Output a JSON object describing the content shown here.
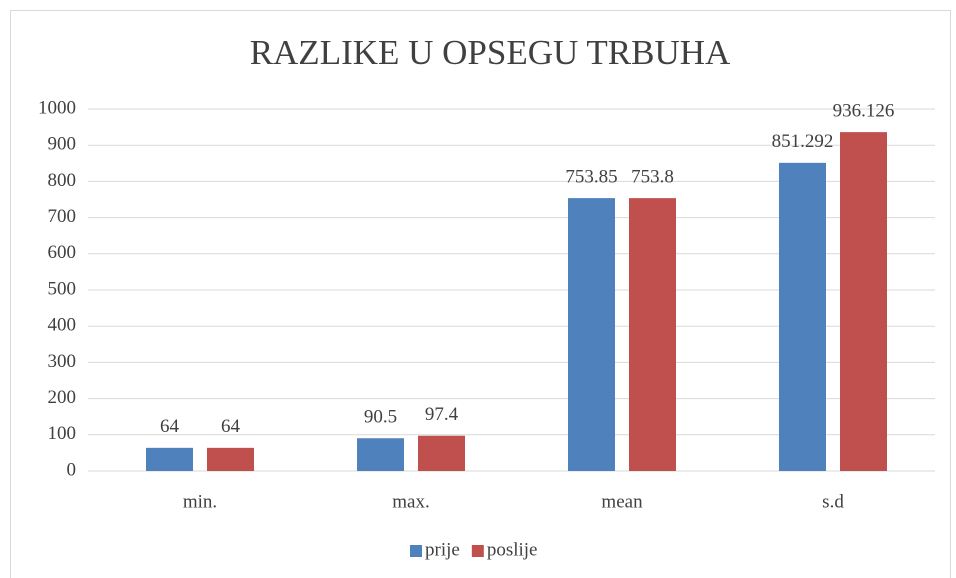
{
  "chart_data": {
    "type": "bar",
    "title": "RAZLIKE U OPSEGU TRBUHA",
    "categories": [
      "min.",
      "max.",
      "mean",
      "s.d"
    ],
    "series": [
      {
        "name": "prije",
        "color": "#4f81bd",
        "values": [
          64,
          90.5,
          753.85,
          851.292
        ]
      },
      {
        "name": "poslije",
        "color": "#c0504d",
        "values": [
          64,
          97.4,
          753.8,
          936.126
        ]
      }
    ],
    "ylim": [
      0,
      1000
    ],
    "yticks": [
      0,
      100,
      200,
      300,
      400,
      500,
      600,
      700,
      800,
      900,
      1000
    ],
    "grid": true,
    "legend": "bottom"
  }
}
